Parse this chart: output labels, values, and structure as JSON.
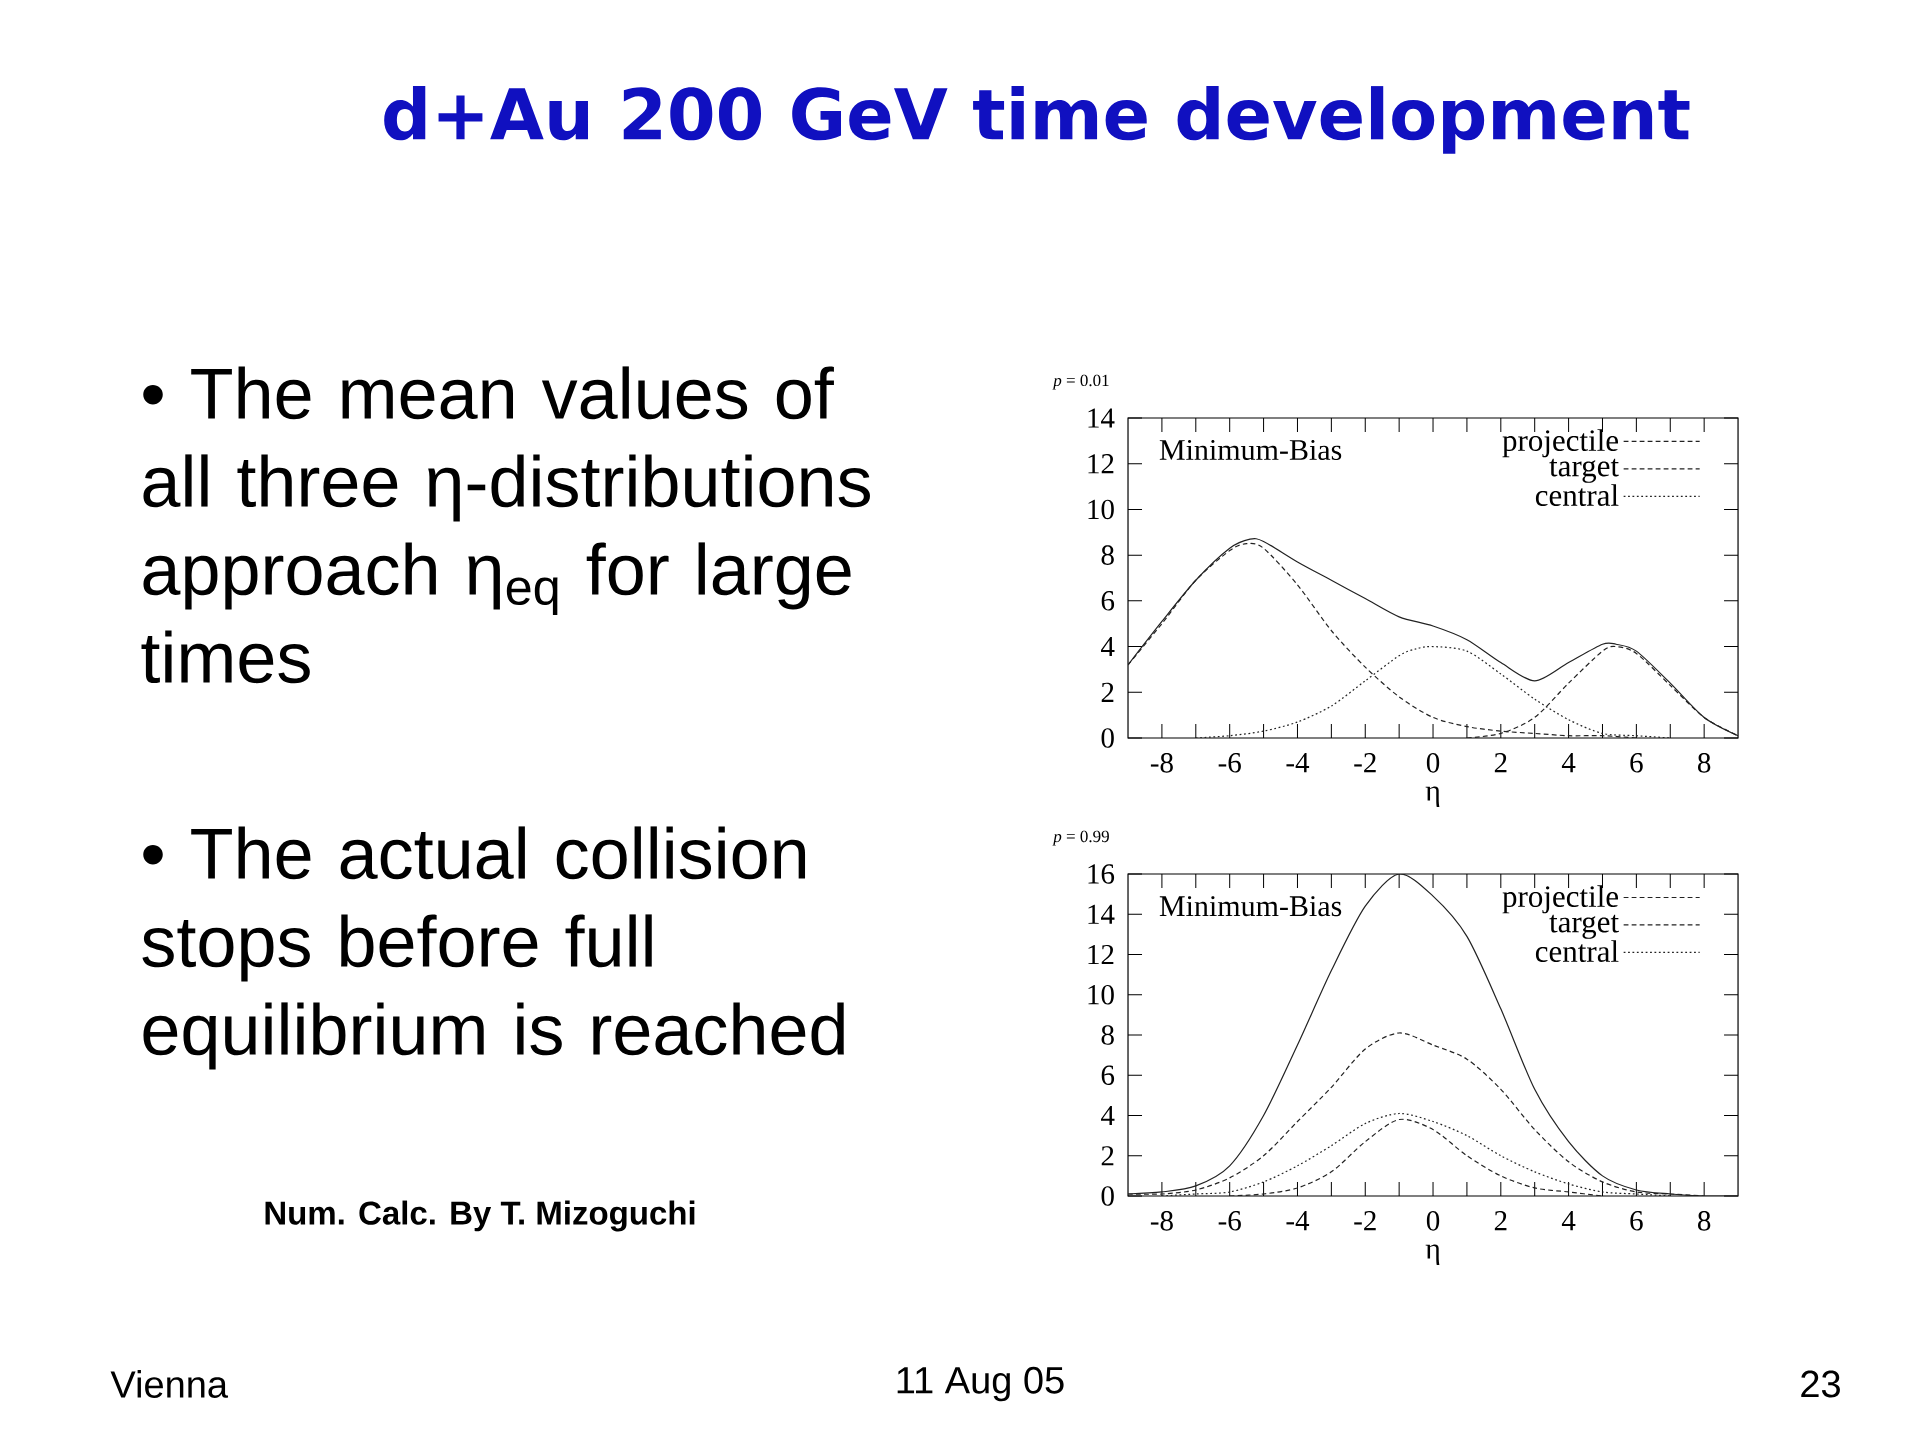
{
  "chart_data": [
    {
      "type": "other",
      "title": "d+Au 200 GeV time development",
      "annotations": [
        "• The mean values of all three η-distributions approach η$_{eq}$ for large times",
        "• The actual collision stops before full equilibrium is reached",
        "Num. Calc. By T. Mizoguchi",
        "Vienna",
        "11 Aug 05",
        "23"
      ]
    },
    {
      "type": "line",
      "title": "*p* = 0.01",
      "xlabel": "η",
      "annotations": [
        "Minimum-Bias"
      ],
      "legend": "top right",
      "xlim": [
        -9,
        9
      ],
      "xticks": [
        -8,
        {
          "value": -7,
          "label": null
        },
        -6,
        {
          "value": -5,
          "label": null
        },
        -4,
        {
          "value": -3,
          "label": null
        },
        -2,
        {
          "value": -1,
          "label": null
        },
        0,
        {
          "value": 1,
          "label": null
        },
        2,
        {
          "value": 3,
          "label": null
        },
        4,
        {
          "value": 5,
          "label": null
        },
        6,
        {
          "value": 7,
          "label": null
        },
        8
      ],
      "ylim": [
        0,
        14
      ],
      "yticks": [
        0,
        2,
        4,
        6,
        8,
        10,
        12,
        14
      ],
      "series": [
        {
          "name": "projectile",
          "color": "#222222",
          "line_style": "dashed",
          "x": [
            1,
            2,
            3,
            4,
            5,
            5.4,
            6,
            7,
            8,
            9
          ],
          "values": [
            0,
            0.2,
            0.9,
            2.4,
            3.8,
            4.0,
            3.7,
            2.3,
            0.9,
            0.1
          ]
        },
        {
          "name": "target",
          "color": "#222222",
          "line_style": "dashed",
          "x": [
            -9,
            -8,
            -7,
            -6,
            -5.5,
            -5,
            -4,
            -3,
            -2,
            -1,
            0,
            1,
            2,
            3,
            4,
            5,
            6
          ],
          "values": [
            3.2,
            5.0,
            6.9,
            8.2,
            8.5,
            8.3,
            6.7,
            4.7,
            3.1,
            1.8,
            0.9,
            0.5,
            0.3,
            0.2,
            0.1,
            0.1,
            0
          ]
        },
        {
          "name": "central",
          "color": "#222222",
          "line_style": "dotted",
          "x": [
            -7,
            -6,
            -5,
            -4,
            -3,
            -2,
            -1,
            -0.5,
            0,
            1,
            2,
            3,
            4,
            5,
            6,
            7
          ],
          "values": [
            0,
            0.1,
            0.3,
            0.7,
            1.4,
            2.5,
            3.6,
            3.9,
            4.0,
            3.8,
            2.8,
            1.7,
            0.8,
            0.2,
            0.1,
            0
          ]
        },
        {
          "color": "#222222",
          "line_style": "solid",
          "x": [
            -9,
            -8,
            -7,
            -6,
            -5.4,
            -5,
            -4,
            -3,
            -2,
            -1,
            0,
            1,
            2,
            3,
            4,
            5,
            5.4,
            6,
            7,
            8,
            9
          ],
          "values": [
            3.2,
            5.1,
            6.9,
            8.3,
            8.7,
            8.6,
            7.7,
            6.9,
            6.1,
            5.3,
            4.9,
            4.3,
            3.3,
            2.5,
            3.3,
            4.1,
            4.1,
            3.8,
            2.4,
            0.9,
            0.1
          ]
        }
      ]
    },
    {
      "type": "line",
      "title": "*p* = 0.99",
      "xlabel": "η",
      "annotations": [
        "Minimum-Bias"
      ],
      "legend": "top right",
      "xlim": [
        -9,
        9
      ],
      "xticks": [
        -8,
        {
          "value": -7,
          "label": null
        },
        -6,
        {
          "value": -5,
          "label": null
        },
        -4,
        {
          "value": -3,
          "label": null
        },
        -2,
        {
          "value": -1,
          "label": null
        },
        0,
        {
          "value": 1,
          "label": null
        },
        2,
        {
          "value": 3,
          "label": null
        },
        4,
        {
          "value": 5,
          "label": null
        },
        6,
        {
          "value": 7,
          "label": null
        },
        8
      ],
      "ylim": [
        0,
        16
      ],
      "yticks": [
        0,
        2,
        4,
        6,
        8,
        10,
        12,
        14,
        16
      ],
      "series": [
        {
          "name": "projectile",
          "color": "#222222",
          "line_style": "dashed",
          "x": [
            -6,
            -5,
            -4,
            -3,
            -2,
            -1,
            0,
            1,
            2,
            3,
            4,
            5
          ],
          "values": [
            0,
            0.1,
            0.4,
            1.2,
            2.7,
            3.8,
            3.3,
            2.0,
            1.0,
            0.4,
            0.2,
            0
          ]
        },
        {
          "name": "target",
          "color": "#222222",
          "line_style": "dashed",
          "x": [
            -9,
            -8,
            -7,
            -6,
            -5,
            -4,
            -3,
            -2,
            -1,
            0,
            1,
            2,
            3,
            4,
            5,
            6,
            7,
            8
          ],
          "values": [
            0.1,
            0.1,
            0.3,
            0.9,
            2.0,
            3.7,
            5.4,
            7.3,
            8.1,
            7.5,
            6.8,
            5.3,
            3.3,
            1.7,
            0.7,
            0.2,
            0.1,
            0
          ]
        },
        {
          "name": "central",
          "color": "#222222",
          "line_style": "dotted",
          "x": [
            -8,
            -7,
            -6,
            -5,
            -4,
            -3,
            -2,
            -1,
            0,
            1,
            2,
            3,
            4,
            5,
            6,
            7
          ],
          "values": [
            0,
            0.1,
            0.2,
            0.7,
            1.5,
            2.5,
            3.6,
            4.1,
            3.7,
            3.0,
            2.0,
            1.2,
            0.6,
            0.2,
            0.1,
            0
          ]
        },
        {
          "color": "#222222",
          "line_style": "solid",
          "x": [
            -9,
            -8,
            -7,
            -6,
            -5,
            -4,
            -3,
            -2,
            -1,
            0,
            1,
            2,
            3,
            4,
            5,
            6,
            7,
            8,
            9
          ],
          "values": [
            0.1,
            0.2,
            0.5,
            1.5,
            4.0,
            7.5,
            11.2,
            14.4,
            16.0,
            14.9,
            12.9,
            9.3,
            5.3,
            2.7,
            1.0,
            0.3,
            0.1,
            0,
            0
          ]
        }
      ]
    }
  ]
}
